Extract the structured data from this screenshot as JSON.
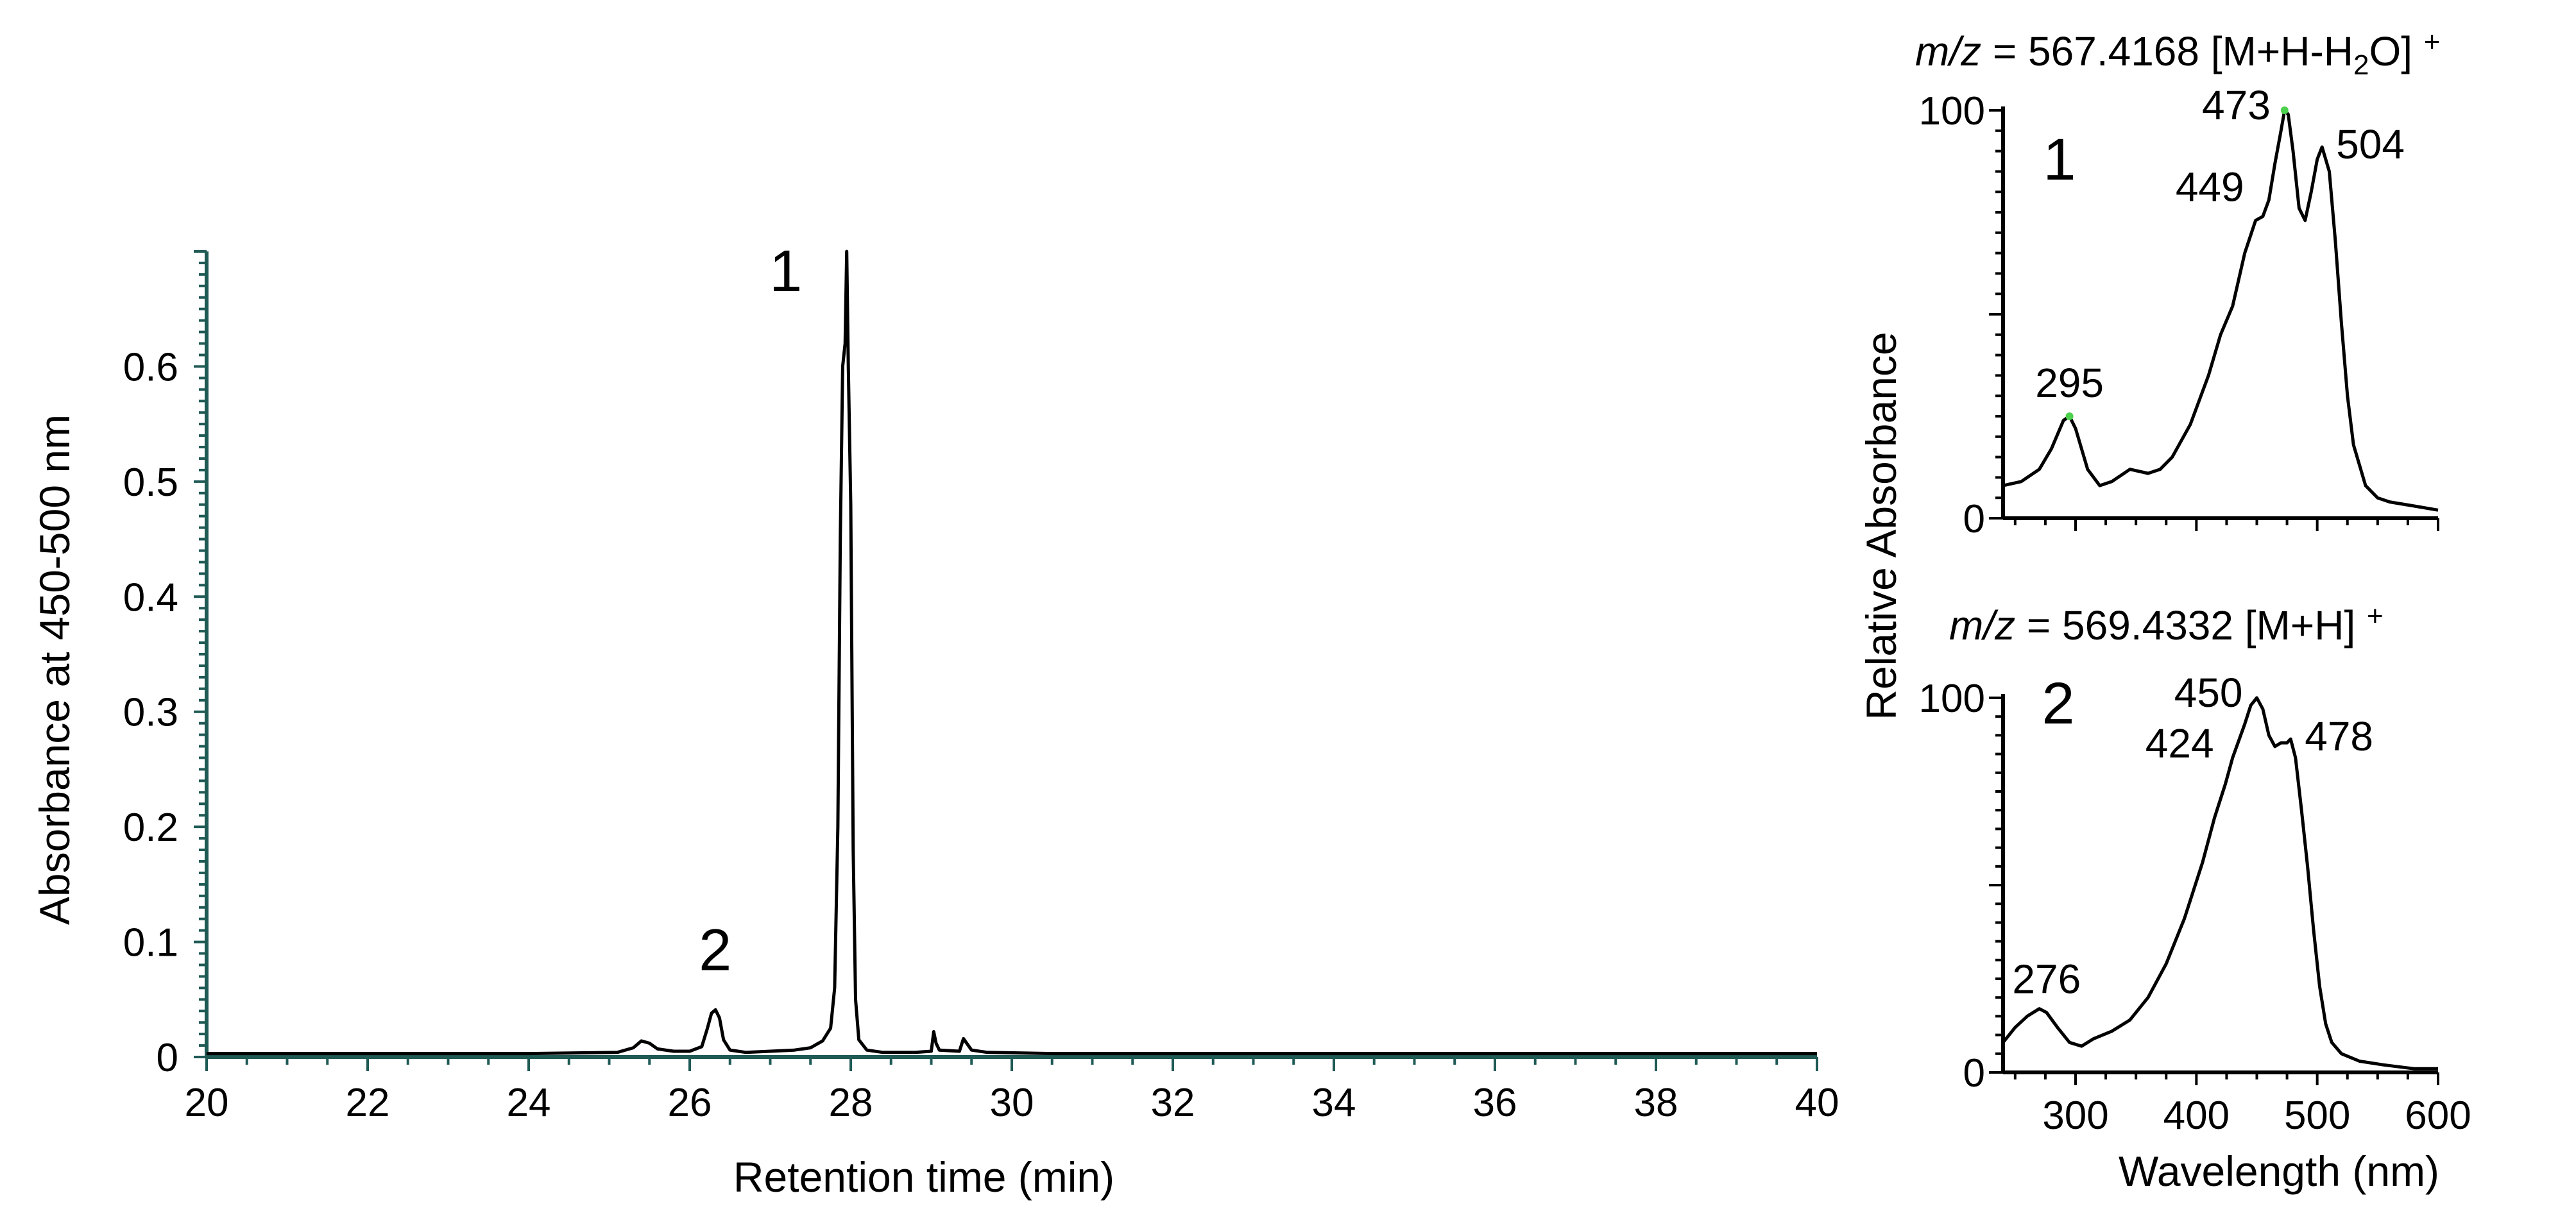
{
  "colors": {
    "trace": "#000000",
    "axis_chromatogram": "#1f5a55",
    "axis_spectra": "#000000",
    "marker": "#4bd14b"
  },
  "chart_data": [
    {
      "type": "line",
      "xlabel": "Retention time (min)",
      "ylabel": "Absorbance at 450-500 nm",
      "xlim": [
        20,
        40
      ],
      "ylim": [
        0,
        0.7
      ],
      "x_ticks": [
        "20",
        "22",
        "24",
        "26",
        "28",
        "30",
        "32",
        "34",
        "36",
        "38",
        "40"
      ],
      "y_ticks": [
        "0",
        "0.1",
        "0.2",
        "0.3",
        "0.4",
        "0.5",
        "0.6"
      ],
      "grid": false,
      "peaks": [
        {
          "label": "1",
          "x": 27.95,
          "y": 0.7
        },
        {
          "label": "2",
          "x": 26.3,
          "y": 0.042
        }
      ],
      "series": [
        {
          "x": [
            20.0,
            24.0,
            25.1,
            25.3,
            25.4,
            25.5,
            25.6,
            25.8,
            26.0,
            26.15,
            26.22,
            26.27,
            26.32,
            26.37,
            26.42,
            26.5,
            26.7,
            27.0,
            27.3,
            27.5,
            27.65,
            27.75,
            27.8,
            27.84,
            27.87,
            27.9,
            27.93,
            27.95,
            27.97,
            28.0,
            28.03,
            28.06,
            28.1,
            28.2,
            28.4,
            28.8,
            29.0,
            29.03,
            29.06,
            29.1,
            29.35,
            29.4,
            29.45,
            29.5,
            29.7,
            30.5,
            40.0
          ],
          "y": [
            0.003,
            0.003,
            0.004,
            0.008,
            0.014,
            0.012,
            0.007,
            0.005,
            0.005,
            0.009,
            0.025,
            0.038,
            0.041,
            0.034,
            0.015,
            0.006,
            0.004,
            0.005,
            0.006,
            0.008,
            0.014,
            0.025,
            0.06,
            0.2,
            0.45,
            0.6,
            0.62,
            0.7,
            0.6,
            0.48,
            0.18,
            0.05,
            0.015,
            0.006,
            0.004,
            0.004,
            0.005,
            0.022,
            0.012,
            0.006,
            0.005,
            0.016,
            0.011,
            0.006,
            0.004,
            0.003,
            0.003
          ]
        }
      ]
    },
    {
      "type": "line",
      "panel": "1",
      "mz_italic": "m/z",
      "mz_text": " = 567.4168 [M+H-H",
      "mz_sub": "2",
      "mz_tail": "O] ",
      "mz_sup": "+",
      "xlim": [
        240,
        600
      ],
      "ylim": [
        0,
        100
      ],
      "y_ticks": [
        "0",
        "100"
      ],
      "peak_labels": [
        {
          "label": "295",
          "x": 295,
          "y": 25
        },
        {
          "label": "449",
          "x": 449,
          "y": 74
        },
        {
          "label": "473",
          "x": 473,
          "y": 100
        },
        {
          "label": "504",
          "x": 504,
          "y": 91
        }
      ],
      "series": [
        {
          "x": [
            240,
            255,
            270,
            280,
            290,
            295,
            300,
            310,
            320,
            330,
            345,
            360,
            370,
            380,
            395,
            410,
            420,
            430,
            440,
            449,
            455,
            460,
            465,
            470,
            473,
            476,
            480,
            485,
            490,
            495,
            500,
            504,
            510,
            515,
            520,
            525,
            530,
            540,
            550,
            560,
            580,
            600
          ],
          "y": [
            8,
            9,
            12,
            17,
            24,
            25,
            22,
            12,
            8,
            9,
            12,
            11,
            12,
            15,
            23,
            35,
            45,
            52,
            65,
            73,
            74,
            78,
            87,
            95,
            100,
            99,
            90,
            76,
            73,
            80,
            88,
            91,
            85,
            68,
            48,
            30,
            18,
            8,
            5,
            4,
            3,
            2
          ]
        }
      ]
    },
    {
      "type": "line",
      "panel": "2",
      "mz_italic": "m/z",
      "mz_text": " = 569.4332 [M+H] ",
      "mz_sup": "+",
      "xlabel": "Wavelength (nm)",
      "ylabel": "Relative Absorbance",
      "xlim": [
        240,
        600
      ],
      "ylim": [
        0,
        100
      ],
      "x_ticks": [
        "300",
        "400",
        "500",
        "600"
      ],
      "y_ticks": [
        "0",
        "100"
      ],
      "peak_labels": [
        {
          "label": "276",
          "x": 276,
          "y": 16
        },
        {
          "label": "424",
          "x": 424,
          "y": 80
        },
        {
          "label": "450",
          "x": 450,
          "y": 100
        },
        {
          "label": "478",
          "x": 478,
          "y": 89
        }
      ],
      "series": [
        {
          "x": [
            240,
            250,
            260,
            270,
            276,
            285,
            295,
            305,
            315,
            330,
            345,
            360,
            375,
            390,
            405,
            415,
            424,
            430,
            440,
            445,
            450,
            455,
            460,
            465,
            470,
            475,
            478,
            482,
            487,
            492,
            497,
            502,
            507,
            512,
            520,
            535,
            555,
            580,
            600
          ],
          "y": [
            8,
            12,
            15,
            17,
            16,
            12,
            8,
            7,
            9,
            11,
            14,
            20,
            29,
            41,
            56,
            68,
            77,
            84,
            93,
            98,
            100,
            97,
            90,
            87,
            88,
            88,
            89,
            84,
            70,
            55,
            38,
            23,
            13,
            8,
            5,
            3,
            2,
            1,
            1
          ]
        }
      ]
    }
  ]
}
